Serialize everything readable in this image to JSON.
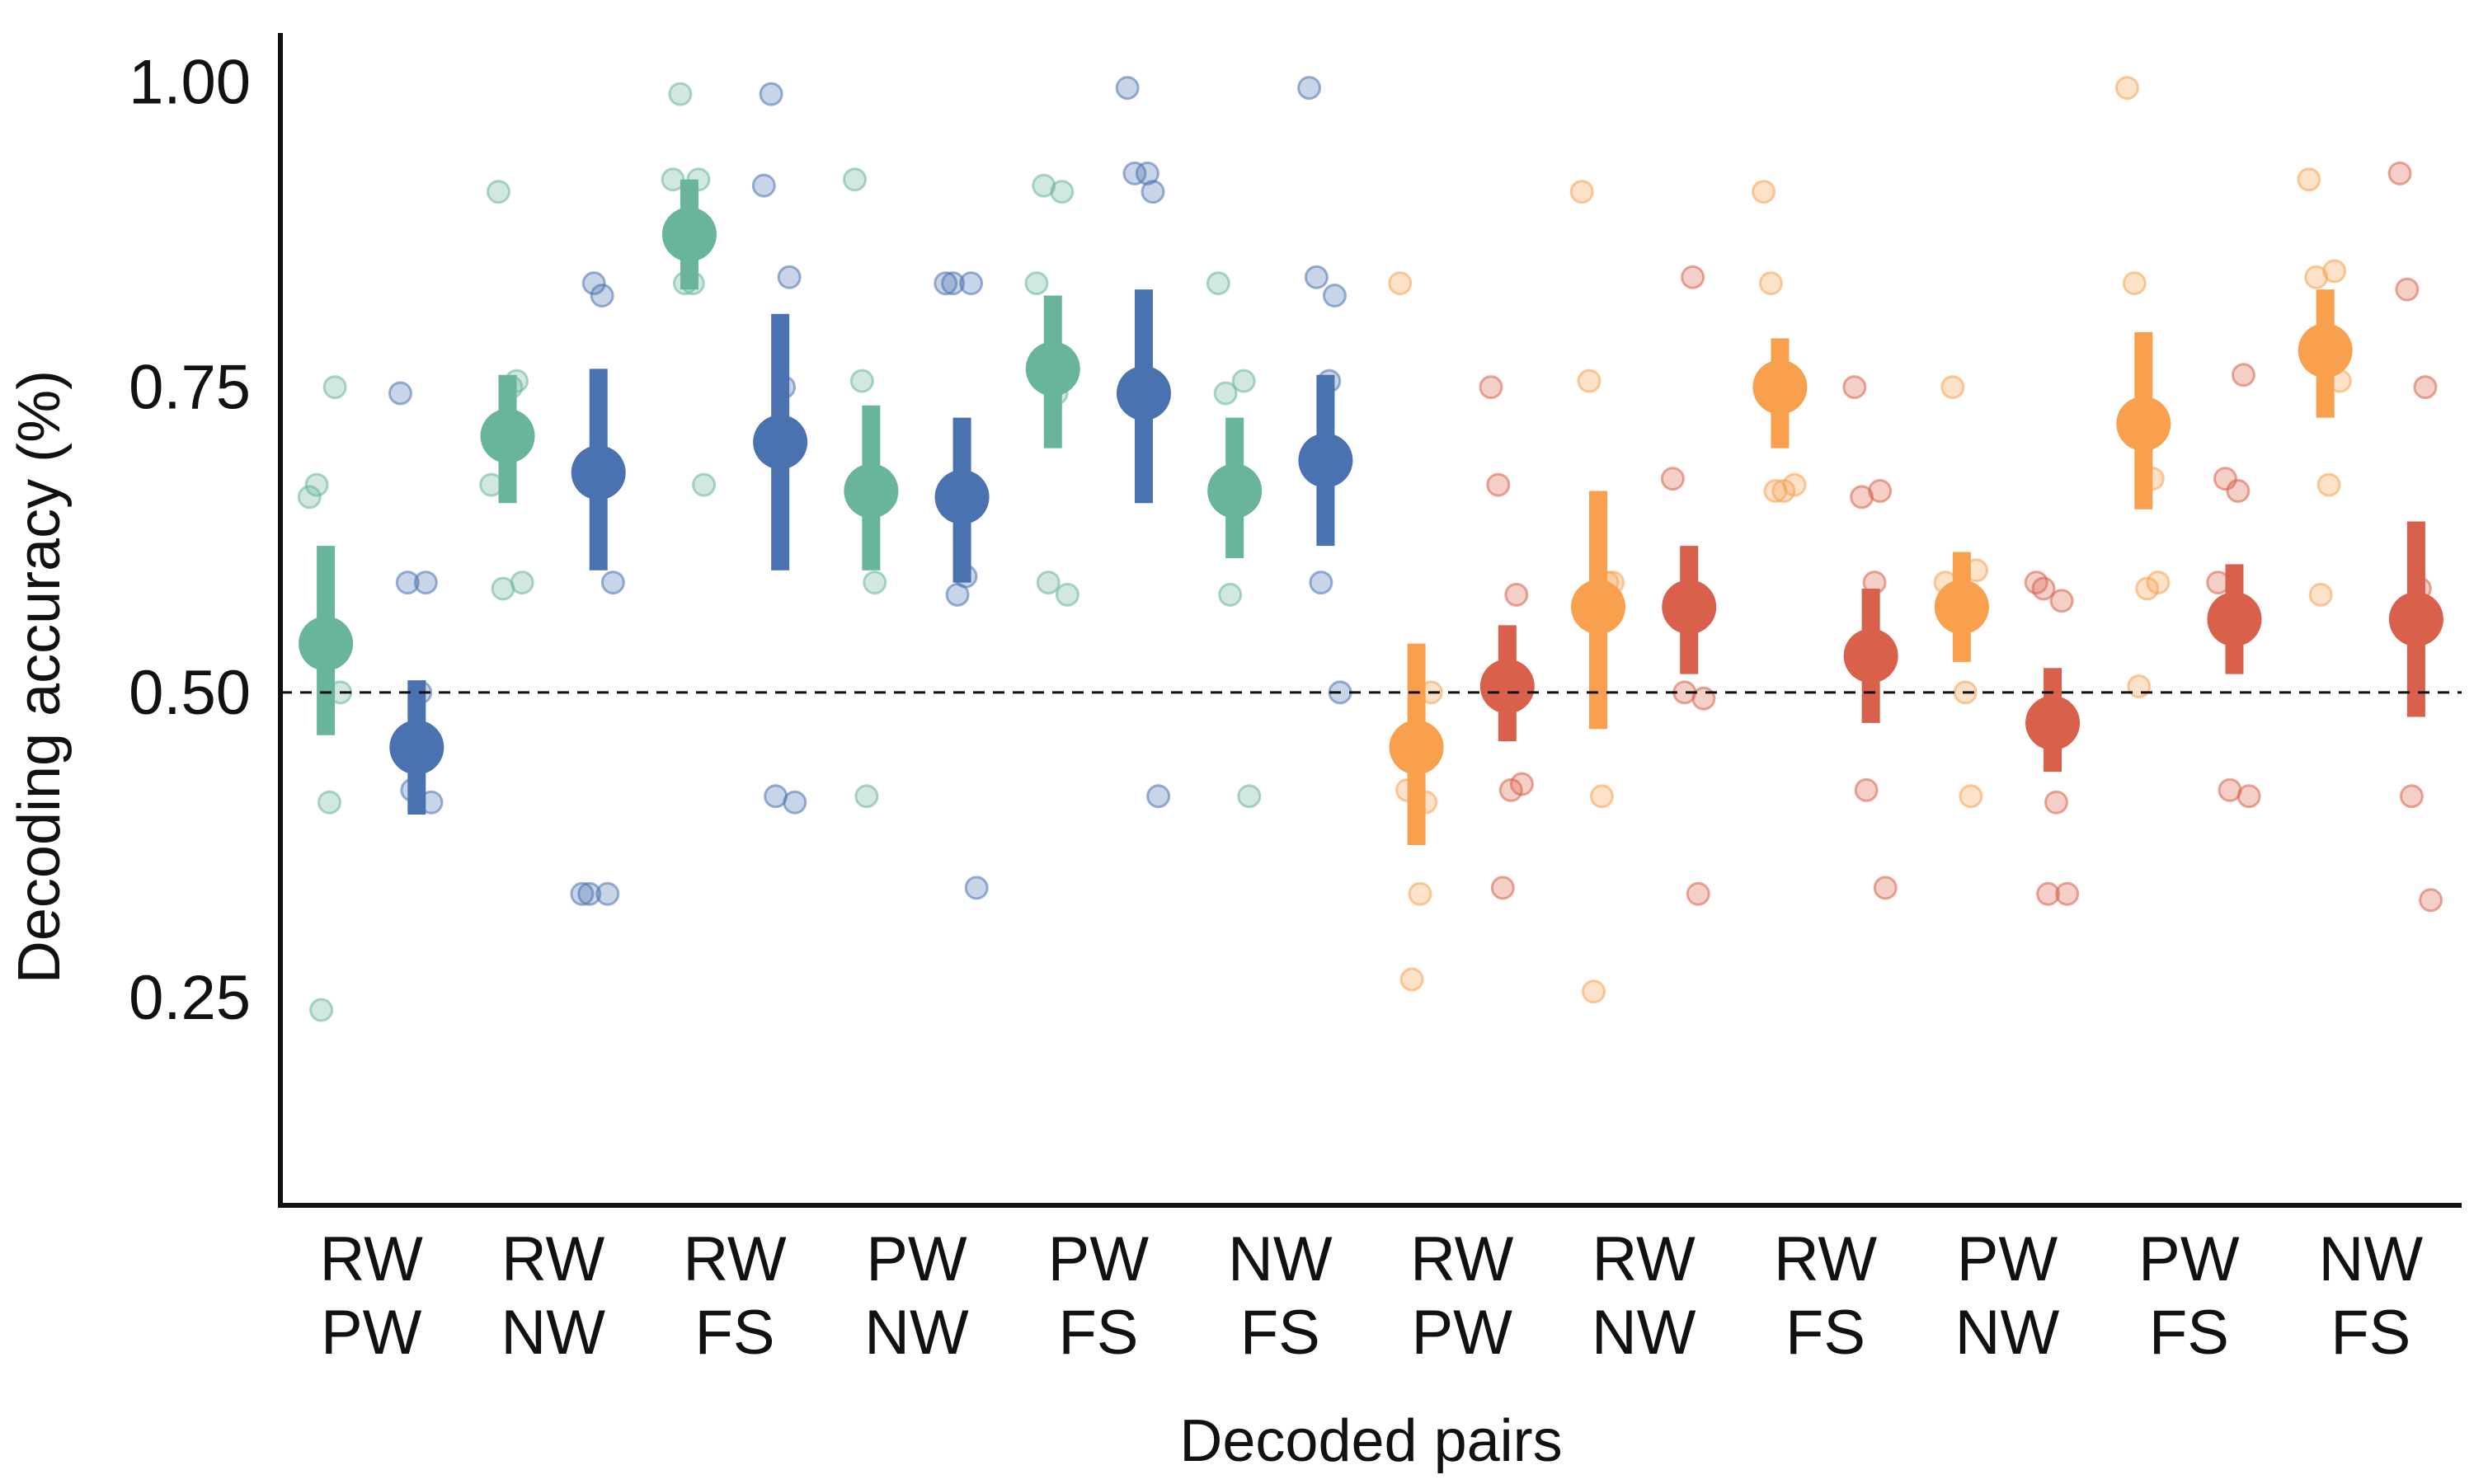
{
  "chart_data": {
    "type": "scatter",
    "xlabel": "Decoded pairs",
    "ylabel": "Decoding accuracy (%)",
    "ylim": [
      0.08,
      1.04
    ],
    "yticks": [
      "0.25",
      "0.50",
      "0.75",
      "1.00"
    ],
    "reference_line": 0.5,
    "grid": false,
    "legend": "none",
    "categories": [
      {
        "line1": "RW",
        "line2": "PW"
      },
      {
        "line1": "RW",
        "line2": "NW"
      },
      {
        "line1": "RW",
        "line2": "FS"
      },
      {
        "line1": "PW",
        "line2": "NW"
      },
      {
        "line1": "PW",
        "line2": "FS"
      },
      {
        "line1": "NW",
        "line2": "FS"
      },
      {
        "line1": "RW",
        "line2": "PW"
      },
      {
        "line1": "RW",
        "line2": "NW"
      },
      {
        "line1": "RW",
        "line2": "FS"
      },
      {
        "line1": "PW",
        "line2": "NW"
      },
      {
        "line1": "PW",
        "line2": "FS"
      },
      {
        "line1": "NW",
        "line2": "FS"
      }
    ],
    "series": [
      {
        "color": "#68b49c",
        "cat_range": [
          0,
          5
        ],
        "offset": -0.25,
        "means": [
          0.54,
          0.71,
          0.875,
          0.665,
          0.765,
          0.665
        ],
        "ci_low": [
          0.465,
          0.655,
          0.83,
          0.6,
          0.7,
          0.61
        ],
        "ci_high": [
          0.62,
          0.76,
          0.92,
          0.735,
          0.825,
          0.725
        ],
        "points": [
          [
            0.66,
            0.67,
            0.75,
            0.41,
            0.24,
            0.5
          ],
          [
            0.67,
            0.91,
            0.755,
            0.75,
            0.585,
            0.59
          ],
          [
            0.92,
            0.99,
            0.92,
            0.835,
            0.835,
            0.67
          ],
          [
            0.92,
            0.755,
            0.665,
            0.59,
            0.415,
            0.66
          ],
          [
            0.835,
            0.915,
            0.91,
            0.745,
            0.59,
            0.58
          ],
          [
            0.835,
            0.745,
            0.755,
            0.675,
            0.58,
            0.415
          ]
        ]
      },
      {
        "color": "#4a72b0",
        "cat_range": [
          0,
          5
        ],
        "offset": 0.25,
        "means": [
          0.455,
          0.68,
          0.705,
          0.66,
          0.745,
          0.69
        ],
        "ci_low": [
          0.4,
          0.6,
          0.6,
          0.59,
          0.655,
          0.62
        ],
        "ci_high": [
          0.51,
          0.765,
          0.81,
          0.725,
          0.83,
          0.76
        ],
        "points": [
          [
            0.745,
            0.59,
            0.59,
            0.5,
            0.42,
            0.41
          ],
          [
            0.335,
            0.335,
            0.335,
            0.825,
            0.835,
            0.59
          ],
          [
            0.915,
            0.99,
            0.84,
            0.75,
            0.415,
            0.41
          ],
          [
            0.835,
            0.835,
            0.835,
            0.595,
            0.58,
            0.34
          ],
          [
            0.995,
            0.925,
            0.91,
            0.925,
            0.755,
            0.415
          ],
          [
            0.995,
            0.84,
            0.825,
            0.755,
            0.59,
            0.5
          ]
        ]
      },
      {
        "color": "#f9a04e",
        "cat_range": [
          6,
          11
        ],
        "offset": -0.25,
        "means": [
          0.455,
          0.57,
          0.75,
          0.57,
          0.72,
          0.78
        ],
        "ci_low": [
          0.375,
          0.47,
          0.7,
          0.525,
          0.65,
          0.725
        ],
        "ci_high": [
          0.54,
          0.665,
          0.79,
          0.615,
          0.795,
          0.83
        ],
        "points": [
          [
            0.835,
            0.42,
            0.41,
            0.335,
            0.265,
            0.5
          ],
          [
            0.91,
            0.755,
            0.59,
            0.415,
            0.255,
            0.59
          ],
          [
            0.91,
            0.835,
            0.745,
            0.665,
            0.665,
            0.67
          ],
          [
            0.59,
            0.75,
            0.415,
            0.5,
            0.58,
            0.6
          ],
          [
            0.995,
            0.835,
            0.675,
            0.585,
            0.505,
            0.59
          ],
          [
            0.92,
            0.84,
            0.845,
            0.67,
            0.58,
            0.755
          ]
        ]
      },
      {
        "color": "#d9604a",
        "cat_range": [
          6,
          11
        ],
        "offset": 0.25,
        "means": [
          0.505,
          0.57,
          0.53,
          0.475,
          0.56,
          0.56
        ],
        "ci_low": [
          0.46,
          0.515,
          0.475,
          0.435,
          0.515,
          0.48
        ],
        "ci_high": [
          0.555,
          0.62,
          0.585,
          0.52,
          0.605,
          0.64
        ],
        "points": [
          [
            0.75,
            0.67,
            0.58,
            0.42,
            0.34,
            0.425
          ],
          [
            0.675,
            0.58,
            0.335,
            0.84,
            0.5,
            0.495
          ],
          [
            0.75,
            0.66,
            0.665,
            0.59,
            0.42,
            0.34
          ],
          [
            0.59,
            0.585,
            0.575,
            0.41,
            0.335,
            0.335
          ],
          [
            0.59,
            0.675,
            0.76,
            0.665,
            0.42,
            0.415
          ],
          [
            0.925,
            0.83,
            0.75,
            0.585,
            0.415,
            0.33
          ]
        ]
      }
    ]
  }
}
